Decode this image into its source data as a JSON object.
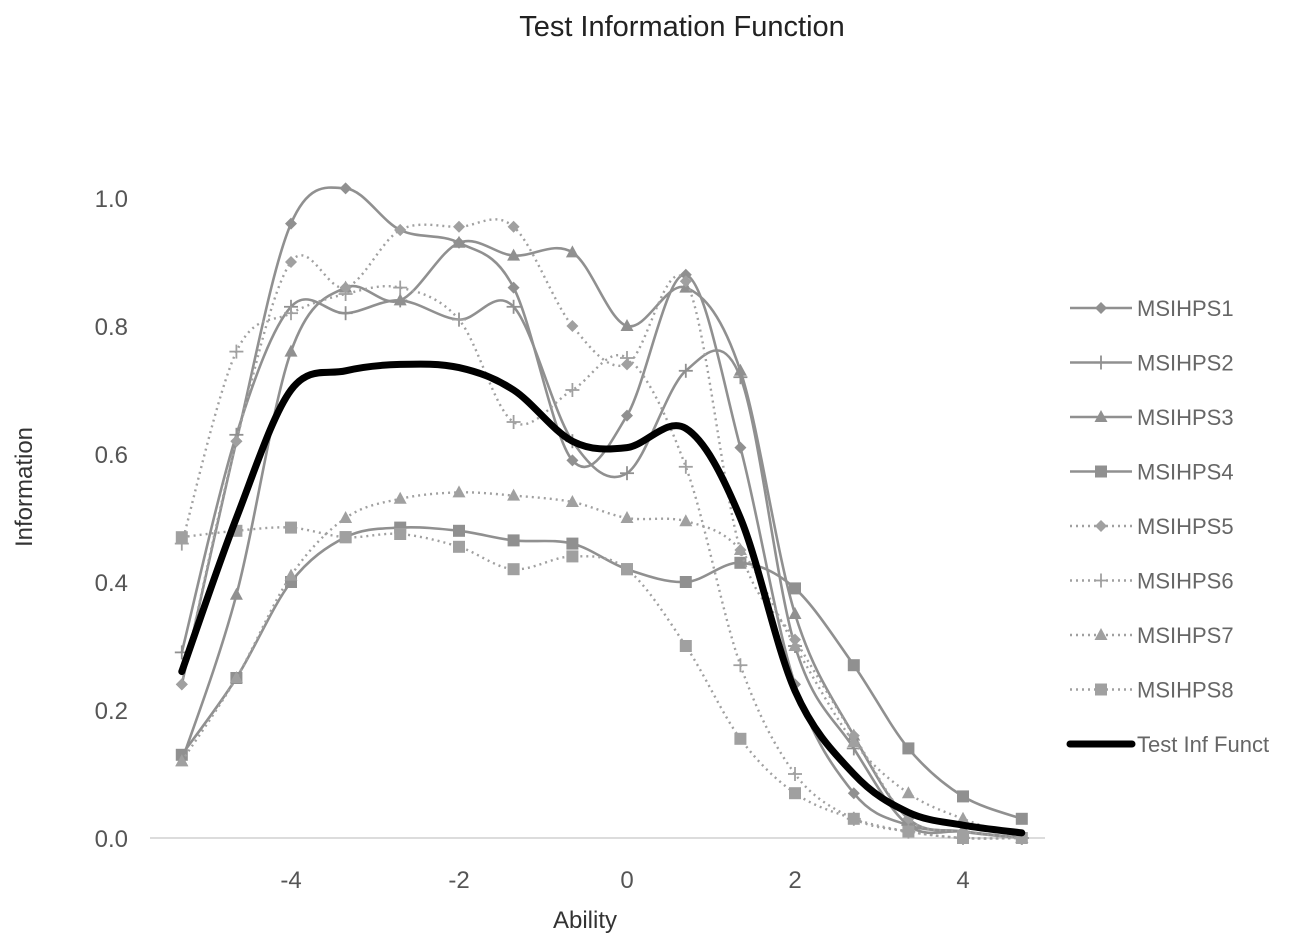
{
  "chart_data": {
    "type": "line",
    "title": "Test Information Function",
    "xlabel": "Ability",
    "ylabel": "Information",
    "xlim": [
      -5.6,
      5.0
    ],
    "ylim": [
      0,
      1.1
    ],
    "x_ticks": [
      -4,
      -2,
      0,
      2,
      4
    ],
    "x_tick_labels": [
      "-4",
      "-2",
      "0",
      "2",
      "4"
    ],
    "y_ticks": [
      0,
      0.2,
      0.4,
      0.6,
      0.8,
      1.0
    ],
    "y_tick_labels": [
      "0.0",
      "0.2",
      "0.4",
      "0.6",
      "0.8",
      "1.0"
    ],
    "grid": false,
    "legend_position": "right",
    "x": [
      -5.3,
      -4.65,
      -4.0,
      -3.35,
      -2.7,
      -2.0,
      -1.35,
      -0.65,
      0.0,
      0.7,
      1.35,
      2.0,
      2.7,
      3.35,
      4.0,
      4.7
    ],
    "series": [
      {
        "name": "MSIHPS1",
        "style": "solid",
        "marker": "diamond",
        "color": "#909090",
        "values": [
          0.24,
          0.62,
          0.96,
          1.015,
          0.95,
          0.93,
          0.86,
          0.59,
          0.66,
          0.88,
          0.61,
          0.24,
          0.07,
          0.02,
          0.01,
          0.0
        ]
      },
      {
        "name": "MSIHPS2",
        "style": "solid",
        "marker": "plus",
        "color": "#909090",
        "values": [
          0.29,
          0.63,
          0.83,
          0.82,
          0.84,
          0.81,
          0.83,
          0.62,
          0.57,
          0.73,
          0.72,
          0.3,
          0.14,
          0.02,
          0.01,
          0.0
        ]
      },
      {
        "name": "MSIHPS3",
        "style": "solid",
        "marker": "triangle",
        "color": "#909090",
        "values": [
          0.12,
          0.38,
          0.76,
          0.86,
          0.84,
          0.93,
          0.91,
          0.915,
          0.8,
          0.86,
          0.73,
          0.35,
          0.16,
          0.03,
          0.01,
          0.0
        ]
      },
      {
        "name": "MSIHPS4",
        "style": "solid",
        "marker": "square",
        "color": "#909090",
        "values": [
          0.13,
          0.25,
          0.4,
          0.47,
          0.485,
          0.48,
          0.465,
          0.46,
          0.42,
          0.4,
          0.43,
          0.39,
          0.27,
          0.14,
          0.065,
          0.03
        ]
      },
      {
        "name": "MSIHPS5",
        "style": "dotted",
        "marker": "diamond",
        "color": "#a0a0a0",
        "values": [
          0.24,
          0.62,
          0.9,
          0.86,
          0.95,
          0.955,
          0.955,
          0.8,
          0.74,
          0.87,
          0.45,
          0.31,
          0.16,
          0.03,
          0.01,
          0.0
        ]
      },
      {
        "name": "MSIHPS6",
        "style": "dotted",
        "marker": "plus",
        "color": "#a0a0a0",
        "values": [
          0.46,
          0.76,
          0.82,
          0.85,
          0.86,
          0.81,
          0.65,
          0.7,
          0.75,
          0.58,
          0.27,
          0.1,
          0.03,
          0.01,
          0.0,
          0.0
        ]
      },
      {
        "name": "MSIHPS7",
        "style": "dotted",
        "marker": "triangle",
        "color": "#a0a0a0",
        "values": [
          0.12,
          0.25,
          0.41,
          0.5,
          0.53,
          0.54,
          0.535,
          0.525,
          0.5,
          0.495,
          0.45,
          0.3,
          0.15,
          0.07,
          0.03,
          0.0
        ]
      },
      {
        "name": "MSIHPS8",
        "style": "dotted",
        "marker": "square",
        "color": "#a0a0a0",
        "values": [
          0.47,
          0.48,
          0.485,
          0.47,
          0.475,
          0.455,
          0.42,
          0.44,
          0.42,
          0.3,
          0.155,
          0.07,
          0.03,
          0.01,
          0.0,
          0.0
        ]
      },
      {
        "name": "Test Inf Funct",
        "style": "bold",
        "marker": "none",
        "color": "#000000",
        "values": [
          0.26,
          0.5,
          0.7,
          0.73,
          0.74,
          0.735,
          0.7,
          0.62,
          0.61,
          0.64,
          0.5,
          0.23,
          0.1,
          0.04,
          0.02,
          0.008
        ]
      }
    ]
  }
}
